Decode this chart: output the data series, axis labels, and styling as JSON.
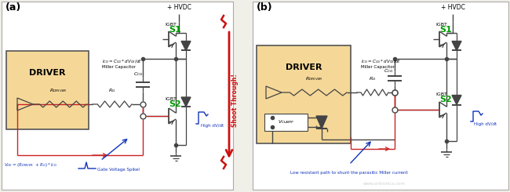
{
  "bg_color": "#f0efe8",
  "panel_bg": "#ffffff",
  "driver_fill": "#f5d898",
  "driver_border": "#555555",
  "wire_color": "#444444",
  "red_wire": "#cc2222",
  "blue_wire": "#1133bb",
  "green_text": "#009900",
  "shoot_color": "#cc1111",
  "label_a": "(a)",
  "label_b": "(b)",
  "title_driver": "DRIVER",
  "igbt_s1": "S1",
  "igbt_s2": "S2",
  "hvdc": "+ HVDC",
  "igbt_label": "IGBT",
  "miller_cap_label": "Miller Capacitor",
  "high_dvdt": "High dV/dt",
  "shoot_through": "Shoot Through!",
  "gate_voltage_spike": "Gate Voltage Spikel",
  "low_resistant": "Low resistant path to shunt the parasitic Miller current",
  "fig_width": 6.5,
  "fig_height": 2.45,
  "dpi": 100
}
